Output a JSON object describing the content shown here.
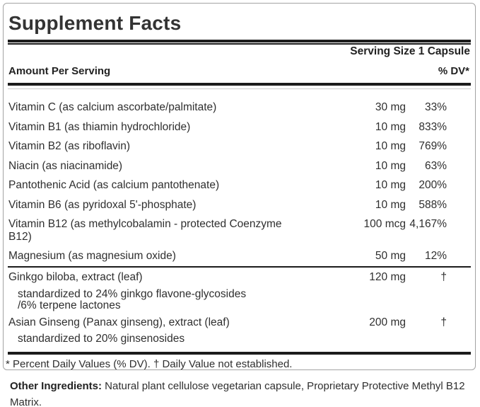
{
  "panel": {
    "title": "Supplement Facts",
    "serving_size": "Serving Size 1 Capsule",
    "header": {
      "amount_label": "Amount Per Serving",
      "dv_label": "% DV*"
    },
    "nutrients": [
      {
        "name_lines": [
          "Vitamin C (as calcium ascorbate/palmitate)"
        ],
        "amount": "30 mg",
        "dv": "33%"
      },
      {
        "name_lines": [
          "Vitamin B1 (as thiamin hydrochloride)"
        ],
        "amount": "10 mg",
        "dv": "833%"
      },
      {
        "name_lines": [
          "Vitamin B2 (as riboflavin)"
        ],
        "amount": "10 mg",
        "dv": "769%"
      },
      {
        "name_lines": [
          "Niacin (as niacinamide)"
        ],
        "amount": "10 mg",
        "dv": "63%"
      },
      {
        "name_lines": [
          "Pantothenic Acid (as calcium pantothenate)"
        ],
        "amount": "10 mg",
        "dv": "200%"
      },
      {
        "name_lines": [
          "Vitamin B6 (as pyridoxal 5'-phosphate)"
        ],
        "amount": "10 mg",
        "dv": "588%"
      },
      {
        "name_lines": [
          "Vitamin B12 (as methylcobalamin - protected Coenzyme",
          "B12)"
        ],
        "amount": "100 mcg",
        "dv": "4,167%"
      },
      {
        "name_lines": [
          "Magnesium (as magnesium oxide)"
        ],
        "amount": "50 mg",
        "dv": "12%"
      }
    ],
    "botanicals": [
      {
        "name": "Ginkgo biloba, extract (leaf)",
        "amount": "120 mg",
        "dv": "†",
        "note_lines": [
          "standardized to 24% ginkgo flavone-glycosides",
          "/6% terpene lactones"
        ]
      },
      {
        "name": "Asian Ginseng (Panax ginseng), extract (leaf)",
        "amount": "200 mg",
        "dv": "†",
        "note_lines": [
          "standardized to 20% ginsenosides"
        ]
      }
    ],
    "footnote": "* Percent Daily Values (% DV). † Daily Value not established."
  },
  "other_ingredients": {
    "label": "Other Ingredients:",
    "text": " Natural plant cellulose vegetarian capsule, Proprietary Protective Methyl B12 Matrix."
  },
  "colors": {
    "background": "#ffffff",
    "text": "#2f2f2f",
    "rule": "#1c1c1c",
    "panel_border": "#a3a3a3"
  }
}
